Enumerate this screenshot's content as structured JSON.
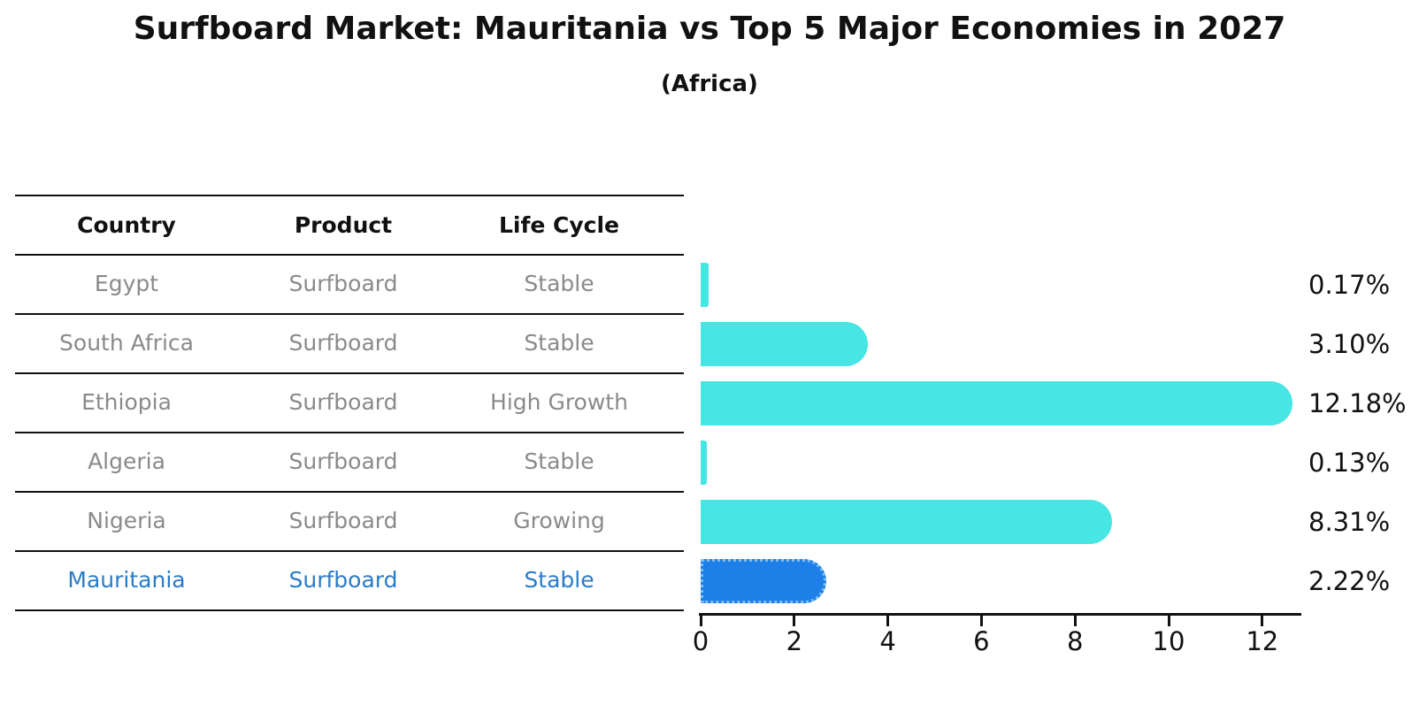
{
  "header": {
    "title": "Surfboard Market: Mauritania vs Top 5 Major Economies in 2027",
    "subtitle": "(Africa)"
  },
  "table": {
    "columns": [
      "Country",
      "Product",
      "Life Cycle"
    ],
    "rows": [
      {
        "country": "Egypt",
        "product": "Surfboard",
        "life_cycle": "Stable",
        "highlighted": false
      },
      {
        "country": "South Africa",
        "product": "Surfboard",
        "life_cycle": "Stable",
        "highlighted": false
      },
      {
        "country": "Ethiopia",
        "product": "Surfboard",
        "life_cycle": "High Growth",
        "highlighted": false
      },
      {
        "country": "Algeria",
        "product": "Surfboard",
        "life_cycle": "Stable",
        "highlighted": false
      },
      {
        "country": "Nigeria",
        "product": "Surfboard",
        "life_cycle": "Growing",
        "highlighted": false
      },
      {
        "country": "Mauritania",
        "product": "Surfboard",
        "life_cycle": "Stable",
        "highlighted": true
      }
    ]
  },
  "chart_data": {
    "type": "bar",
    "orientation": "horizontal",
    "title": "Surfboard Market: Mauritania vs Top 5 Major Economies in 2027 (Africa)",
    "categories": [
      "Egypt",
      "South Africa",
      "Ethiopia",
      "Algeria",
      "Nigeria",
      "Mauritania"
    ],
    "values": [
      0.17,
      3.1,
      12.18,
      0.13,
      8.31,
      2.22
    ],
    "value_labels": [
      "0.17%",
      "3.10%",
      "12.18%",
      "0.13%",
      "8.31%",
      "2.22%"
    ],
    "x_ticks": [
      0,
      2,
      4,
      6,
      8,
      10,
      12
    ],
    "xlim": [
      0,
      12.8
    ],
    "grid": false,
    "legend": null,
    "highlight_index": 5,
    "bar_color": "#47E5E3",
    "highlight_bar_color": "#1E7FE8",
    "highlight_bar_edge_color": "#7CBDF5",
    "highlight_text_color": "#2A7CC7",
    "text_color": "#111111",
    "muted_text_color": "#8a8a8a"
  }
}
